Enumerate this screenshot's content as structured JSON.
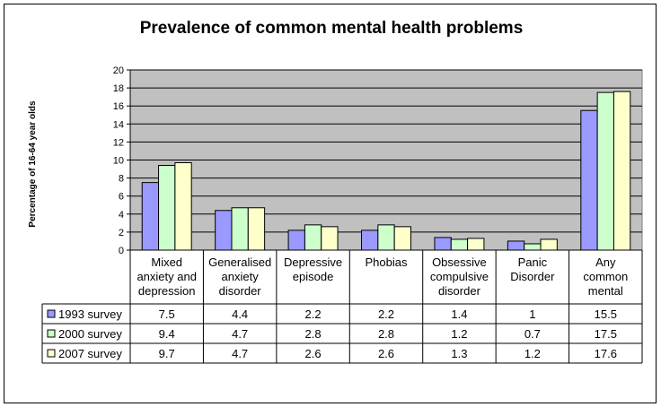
{
  "chart_data": {
    "type": "bar",
    "title": "Prevalence of common mental health problems",
    "ylabel": "Percentage of 16-64 year olds",
    "xlabel": "",
    "ylim": [
      0,
      20
    ],
    "y_ticks": [
      0,
      2,
      4,
      6,
      8,
      10,
      12,
      14,
      16,
      18,
      20
    ],
    "grid": true,
    "legend": "data-table-left",
    "categories": [
      [
        "Mixed",
        "anxiety and",
        "depression"
      ],
      [
        "Generalised",
        "anxiety",
        "disorder"
      ],
      [
        "Depressive",
        "episode"
      ],
      [
        "Phobias"
      ],
      [
        "Obsessive",
        "compulsive",
        "disorder"
      ],
      [
        "Panic",
        "Disorder"
      ],
      [
        "Any",
        "common",
        "mental"
      ]
    ],
    "series": [
      {
        "name": "1993 survey",
        "color": "#9999ff",
        "values": [
          7.5,
          4.4,
          2.2,
          2.2,
          1.4,
          1,
          15.5
        ],
        "labels": [
          "7.5",
          "4.4",
          "2.2",
          "2.2",
          "1.4",
          "1",
          "15.5"
        ]
      },
      {
        "name": "2000 survey",
        "color": "#ccffcc",
        "values": [
          9.4,
          4.7,
          2.8,
          2.8,
          1.2,
          0.7,
          17.5
        ],
        "labels": [
          "9.4",
          "4.7",
          "2.8",
          "2.8",
          "1.2",
          "0.7",
          "17.5"
        ]
      },
      {
        "name": "2007 survey",
        "color": "#ffffcc",
        "values": [
          9.7,
          4.7,
          2.6,
          2.6,
          1.3,
          1.2,
          17.6
        ],
        "labels": [
          "9.7",
          "4.7",
          "2.6",
          "2.6",
          "1.3",
          "1.2",
          "17.6"
        ]
      }
    ],
    "colors": {
      "plot_background": "#c0c0c0",
      "grid": "#000000",
      "bar_border": "#000000"
    }
  }
}
